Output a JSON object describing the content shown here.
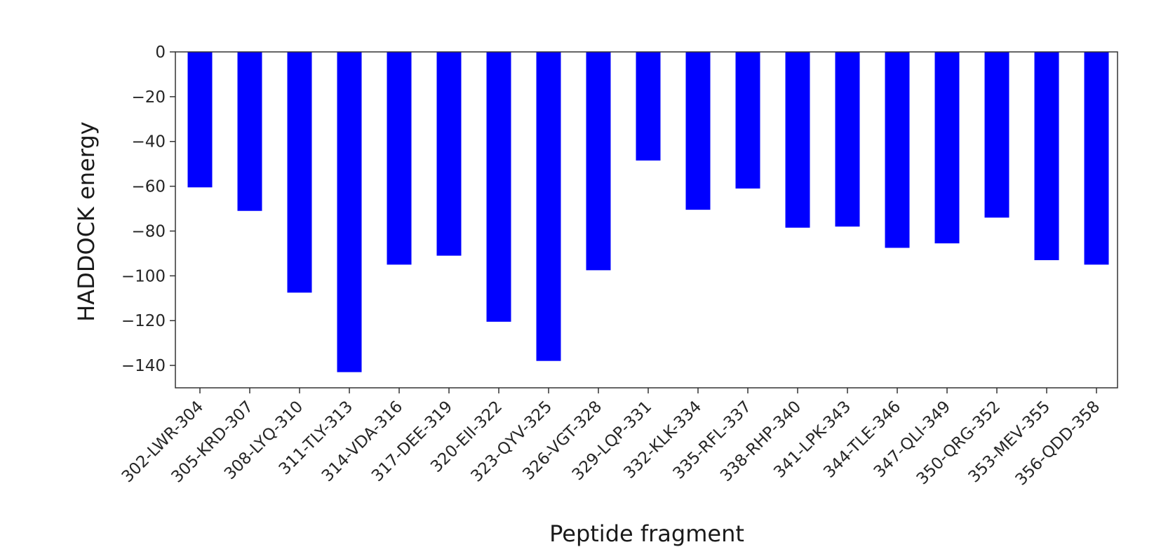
{
  "chart_data": {
    "type": "bar",
    "title": "",
    "xlabel": "Peptide fragment",
    "ylabel": "HADDOCK energy",
    "ylim": [
      -150,
      0
    ],
    "yticks": [
      0,
      -20,
      -40,
      -60,
      -80,
      -100,
      -120,
      -140
    ],
    "ytick_labels": [
      "0",
      "−20",
      "−40",
      "−60",
      "−80",
      "−100",
      "−120",
      "−140"
    ],
    "grid": false,
    "bar_color": "#0000ff",
    "highlight_color": "#e8201c",
    "normal_label_color": "#262626",
    "categories": [
      "302-LWR-304",
      "305-KRD-307",
      "308-LYQ-310",
      "311-TLY-313",
      "314-VDA-316",
      "317-DEE-319",
      "320-EII-322",
      "323-QYV-325",
      "326-VGT-328",
      "329-LQP-331",
      "332-KLK-334",
      "335-RFL-337",
      "338-RHP-340",
      "341-LPK-343",
      "344-TLE-346",
      "347-QLI-349",
      "350-QRG-352",
      "353-MEV-355",
      "356-QDD-358"
    ],
    "values": [
      -60.5,
      -71,
      -107.5,
      -143,
      -95,
      -91,
      -120.5,
      -138,
      -97.5,
      -48.5,
      -70.5,
      -61,
      -78.5,
      -78,
      -87.5,
      -85.5,
      -74,
      -93,
      -95
    ],
    "highlighted": [
      "311-TLY-313",
      "320-EII-322",
      "323-QYV-325"
    ]
  }
}
